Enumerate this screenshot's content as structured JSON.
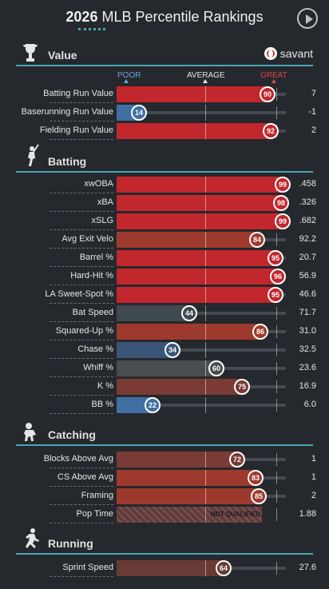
{
  "page": {
    "year": "2026",
    "title_rest": "MLB Percentile Rankings"
  },
  "colors": {
    "accent": "#4aa6b5",
    "red": "#c1272d",
    "blue": "#3f6fa3"
  },
  "sections": {
    "value": {
      "label": "Value",
      "icon": "trophy-icon",
      "brand": "savant"
    },
    "batting": {
      "label": "Batting",
      "icon": "batter-icon"
    },
    "catching": {
      "label": "Catching",
      "icon": "catcher-icon"
    },
    "running": {
      "label": "Running",
      "icon": "runner-icon"
    }
  },
  "scale": {
    "poor": "POOR",
    "average": "AVERAGE",
    "great": "GREAT"
  },
  "value_rows": [
    {
      "name": "Batting Run Value",
      "pct": "90",
      "val": "7",
      "color": "#c1272d"
    },
    {
      "name": "Baserunning Run Value",
      "pct": "14",
      "val": "-1",
      "color": "#3f6fa3"
    },
    {
      "name": "Fielding Run Value",
      "pct": "92",
      "val": "2",
      "color": "#c1272d"
    }
  ],
  "batting_rows": [
    {
      "name": "xwOBA",
      "pct": "99",
      "val": ".458",
      "color": "#c1272d"
    },
    {
      "name": "xBA",
      "pct": "98",
      "val": ".326",
      "color": "#c1272d"
    },
    {
      "name": "xSLG",
      "pct": "99",
      "val": ".682",
      "color": "#c1272d"
    },
    {
      "name": "Avg Exit Velo",
      "pct": "84",
      "val": "92.2",
      "color": "#9e3a2d"
    },
    {
      "name": "Barrel %",
      "pct": "95",
      "val": "20.7",
      "color": "#c1272d"
    },
    {
      "name": "Hard-Hit %",
      "pct": "96",
      "val": "56.9",
      "color": "#c1272d"
    },
    {
      "name": "LA Sweet-Spot %",
      "pct": "95",
      "val": "46.6",
      "color": "#c1272d"
    },
    {
      "name": "Bat Speed",
      "pct": "44",
      "val": "71.7",
      "color": "#3f4a50"
    },
    {
      "name": "Squared-Up %",
      "pct": "86",
      "val": "31.0",
      "color": "#9e3a2d"
    },
    {
      "name": "Chase %",
      "pct": "34",
      "val": "32.5",
      "color": "#3a5577"
    },
    {
      "name": "Whiff %",
      "pct": "60",
      "val": "23.6",
      "color": "#4a4d50"
    },
    {
      "name": "K %",
      "pct": "75",
      "val": "16.9",
      "color": "#7a3a35"
    },
    {
      "name": "BB %",
      "pct": "22",
      "val": "6.0",
      "color": "#3f6fa3"
    }
  ],
  "catching_rows": [
    {
      "name": "Blocks Above Avg",
      "pct": "72",
      "val": "1",
      "color": "#7a3a35"
    },
    {
      "name": "CS Above Avg",
      "pct": "83",
      "val": "1",
      "color": "#9e3a2d"
    },
    {
      "name": "Framing",
      "pct": "85",
      "val": "2",
      "color": "#9e3a2d"
    },
    {
      "name": "Pop Time",
      "pct": "",
      "val": "1.88",
      "not_qualified": "NOT QUALIFIED"
    }
  ],
  "running_rows": [
    {
      "name": "Sprint Speed",
      "pct": "64",
      "val": "27.6",
      "color": "#6a3a35"
    }
  ]
}
